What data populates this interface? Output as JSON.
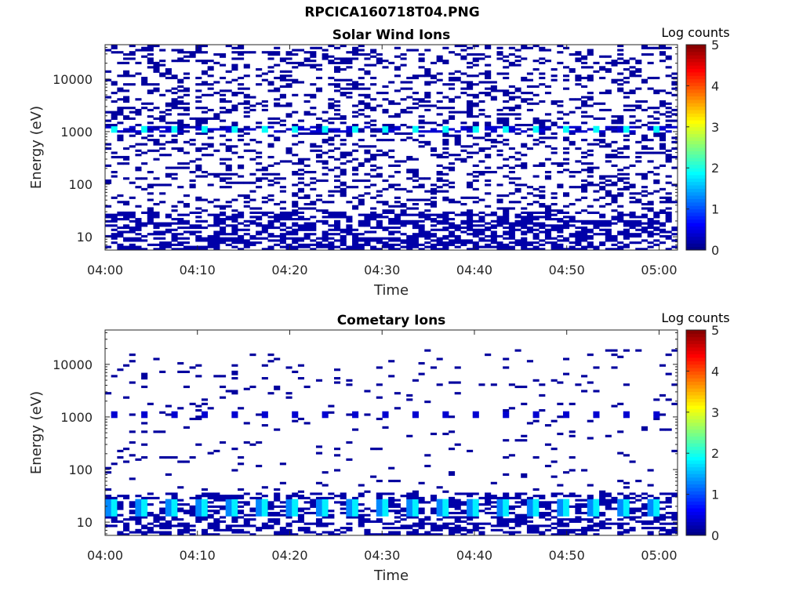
{
  "figure_title": "RPCICA160718T04.PNG",
  "chart_data": [
    {
      "type": "heatmap",
      "title": "Solar Wind Ions",
      "xlabel": "Time",
      "ylabel": "Energy (eV)",
      "x_ticks": [
        "04:00",
        "04:10",
        "04:20",
        "04:30",
        "04:40",
        "04:50",
        "05:00"
      ],
      "x_range": [
        "04:00",
        "05:02"
      ],
      "y_scale": "log",
      "y_ticks": [
        "10",
        "100",
        "1000",
        "10000"
      ],
      "y_range": [
        5.6,
        45000
      ],
      "colorbar": {
        "label": "Log counts",
        "range": [
          0,
          5
        ],
        "ticks": [
          "0",
          "1",
          "2",
          "3",
          "4",
          "5"
        ]
      },
      "time_bins": 95,
      "energy_bins": 96,
      "energy_range_bins": [
        5.6,
        45000
      ],
      "features": [
        {
          "description_values": "scattered counts of level ~0.2 across all energies"
        },
        {
          "energy": 1150,
          "level": 2.0,
          "periodic": true,
          "period_bins": 5
        },
        {
          "energy_lt": 30,
          "level": 0.3,
          "dense": true
        }
      ]
    },
    {
      "type": "heatmap",
      "title": "Cometary Ions",
      "xlabel": "Time",
      "ylabel": "Energy (eV)",
      "x_ticks": [
        "04:00",
        "04:10",
        "04:20",
        "04:30",
        "04:40",
        "04:50",
        "05:00"
      ],
      "x_range": [
        "04:00",
        "05:02"
      ],
      "y_scale": "log",
      "y_ticks": [
        "10",
        "100",
        "1000",
        "10000"
      ],
      "y_range": [
        5.6,
        45000
      ],
      "colorbar": {
        "label": "Log counts",
        "range": [
          0,
          5
        ],
        "ticks": [
          "0",
          "1",
          "2",
          "3",
          "4",
          "5"
        ]
      },
      "time_bins": 95,
      "energy_bins": 96,
      "features": [
        {
          "energy": 1100,
          "level": 0.5,
          "periodic": true,
          "period_bins": 5
        },
        {
          "energy_range": [
            13,
            28
          ],
          "level": 1.8,
          "periodic": true,
          "period_bins": 5
        },
        {
          "energy_lt": 35,
          "level": 0.3,
          "dense": true
        }
      ]
    }
  ]
}
